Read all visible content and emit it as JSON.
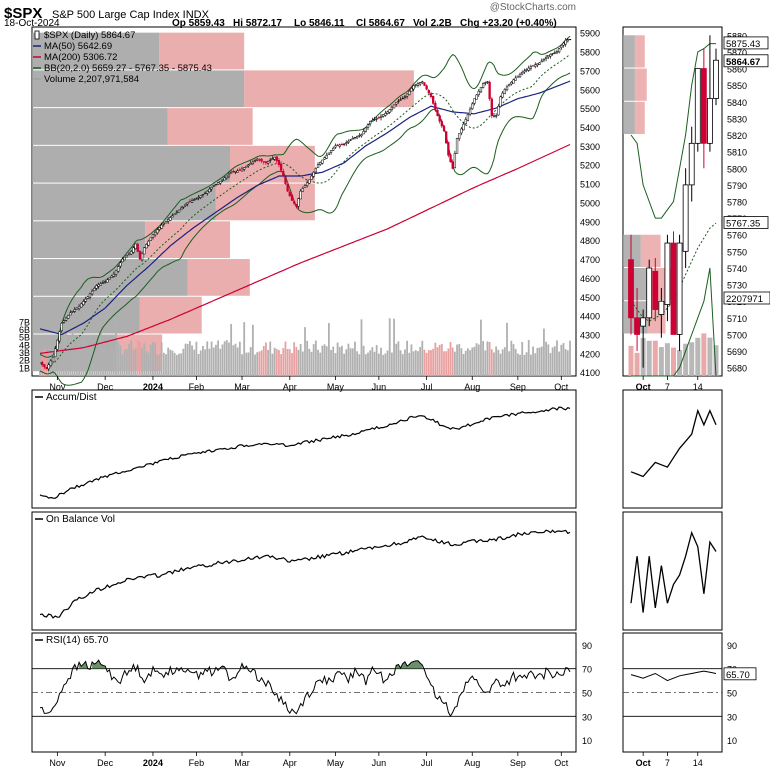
{
  "header": {
    "symbol": "$SPX",
    "name": "S&P 500 Large Cap Index",
    "exchange": "INDX",
    "date": "18-Oct-2024",
    "open_label": "Op",
    "open": "5859.43",
    "high_label": "Hi",
    "high": "5872.17",
    "low_label": "Lo",
    "low": "5846.11",
    "close_label": "Cl",
    "close": "5864.67",
    "vol_label": "Vol",
    "vol": "2.2B",
    "chg_label": "Chg",
    "chg": "+23.20 (+0.40%)",
    "watermark": "@StockCharts.com"
  },
  "colors": {
    "up": "#000000",
    "down": "#cc0033",
    "ma50": "#1a237e",
    "ma200": "#cc0033",
    "bb": "#1b5e20",
    "vbp_up": "#a0a0a0",
    "vbp_down": "#e8a0a0",
    "vol_up": "#b0b0b0",
    "vol_down": "#e8a0a0",
    "rsi_fill": "#3a6a3a"
  },
  "chart_data": [
    {
      "type": "line",
      "panel": "price",
      "legend": [
        {
          "text": "$SPX (Daily) 5864.67",
          "icon": "candle-icon"
        },
        {
          "text": "MA(50) 5642.69",
          "color": "#1a237e"
        },
        {
          "text": "MA(200) 5306.72",
          "color": "#cc0033"
        },
        {
          "text": "BB(20,2.0) 5659.27 - 5767.35 - 5875.43",
          "color": "#1b5e20"
        },
        {
          "text": "Volume 2,207,971,584",
          "color": "#a0a0a0"
        }
      ],
      "x_labels": [
        "Nov",
        "Dec",
        "2024",
        "Feb",
        "Mar",
        "Apr",
        "May",
        "Jun",
        "Jul",
        "Aug",
        "Sep",
        "Oct"
      ],
      "y_ticks": [
        4100,
        4200,
        4300,
        4400,
        4500,
        4600,
        4700,
        4800,
        4900,
        5000,
        5100,
        5200,
        5300,
        5400,
        5500,
        5600,
        5700,
        5800,
        5900
      ],
      "ylim": [
        4080,
        5930
      ],
      "volume_ticks": [
        "1B",
        "2B",
        "3B",
        "4B",
        "5B",
        "6B",
        "7B"
      ],
      "close_anchors": [
        [
          0,
          4150
        ],
        [
          3,
          4120
        ],
        [
          6,
          4180
        ],
        [
          10,
          4360
        ],
        [
          14,
          4415
        ],
        [
          18,
          4450
        ],
        [
          22,
          4500
        ],
        [
          26,
          4560
        ],
        [
          30,
          4580
        ],
        [
          34,
          4620
        ],
        [
          38,
          4700
        ],
        [
          42,
          4740
        ],
        [
          44,
          4780
        ],
        [
          46,
          4700
        ],
        [
          48,
          4760
        ],
        [
          52,
          4830
        ],
        [
          56,
          4880
        ],
        [
          60,
          4920
        ],
        [
          64,
          4960
        ],
        [
          68,
          5000
        ],
        [
          72,
          5020
        ],
        [
          76,
          5050
        ],
        [
          80,
          5090
        ],
        [
          84,
          5120
        ],
        [
          88,
          5160
        ],
        [
          92,
          5170
        ],
        [
          96,
          5200
        ],
        [
          100,
          5230
        ],
        [
          104,
          5210
        ],
        [
          108,
          5240
        ],
        [
          110,
          5200
        ],
        [
          112,
          5140
        ],
        [
          114,
          5060
        ],
        [
          116,
          5010
        ],
        [
          118,
          4980
        ],
        [
          120,
          5060
        ],
        [
          124,
          5120
        ],
        [
          128,
          5200
        ],
        [
          132,
          5250
        ],
        [
          136,
          5300
        ],
        [
          140,
          5310
        ],
        [
          144,
          5340
        ],
        [
          148,
          5360
        ],
        [
          152,
          5430
        ],
        [
          156,
          5450
        ],
        [
          160,
          5480
        ],
        [
          164,
          5530
        ],
        [
          168,
          5560
        ],
        [
          172,
          5620
        ],
        [
          176,
          5640
        ],
        [
          178,
          5600
        ],
        [
          180,
          5560
        ],
        [
          182,
          5490
        ],
        [
          184,
          5430
        ],
        [
          186,
          5380
        ],
        [
          188,
          5250
        ],
        [
          190,
          5180
        ],
        [
          192,
          5340
        ],
        [
          196,
          5440
        ],
        [
          200,
          5550
        ],
        [
          204,
          5630
        ],
        [
          206,
          5640
        ],
        [
          208,
          5460
        ],
        [
          210,
          5460
        ],
        [
          212,
          5560
        ],
        [
          214,
          5600
        ],
        [
          218,
          5650
        ],
        [
          222,
          5690
        ],
        [
          226,
          5720
        ],
        [
          230,
          5740
        ],
        [
          234,
          5780
        ],
        [
          238,
          5800
        ],
        [
          240,
          5830
        ],
        [
          242,
          5860
        ],
        [
          244,
          5865
        ]
      ],
      "ma50_anchors": [
        [
          0,
          4330
        ],
        [
          10,
          4300
        ],
        [
          20,
          4360
        ],
        [
          30,
          4440
        ],
        [
          40,
          4560
        ],
        [
          50,
          4660
        ],
        [
          60,
          4770
        ],
        [
          70,
          4860
        ],
        [
          80,
          4940
        ],
        [
          90,
          5020
        ],
        [
          100,
          5090
        ],
        [
          110,
          5140
        ],
        [
          120,
          5140
        ],
        [
          130,
          5160
        ],
        [
          140,
          5210
        ],
        [
          150,
          5300
        ],
        [
          160,
          5370
        ],
        [
          170,
          5450
        ],
        [
          180,
          5510
        ],
        [
          190,
          5480
        ],
        [
          200,
          5470
        ],
        [
          210,
          5500
        ],
        [
          220,
          5550
        ],
        [
          230,
          5580
        ],
        [
          244,
          5643
        ]
      ],
      "ma200_anchors": [
        [
          0,
          4200
        ],
        [
          20,
          4230
        ],
        [
          40,
          4290
        ],
        [
          60,
          4380
        ],
        [
          80,
          4480
        ],
        [
          100,
          4580
        ],
        [
          120,
          4680
        ],
        [
          140,
          4770
        ],
        [
          160,
          4860
        ],
        [
          180,
          4970
        ],
        [
          200,
          5080
        ],
        [
          220,
          5180
        ],
        [
          244,
          5307
        ]
      ],
      "vbp": [
        {
          "lo": 4100,
          "hi": 4300,
          "up": 0.3,
          "down": 0.16
        },
        {
          "lo": 4300,
          "hi": 4500,
          "up": 0.38,
          "down": 0.22
        },
        {
          "lo": 4500,
          "hi": 4700,
          "up": 0.55,
          "down": 0.22
        },
        {
          "lo": 4700,
          "hi": 4900,
          "up": 0.4,
          "down": 0.3
        },
        {
          "lo": 4900,
          "hi": 5100,
          "up": 0.65,
          "down": 0.35
        },
        {
          "lo": 5100,
          "hi": 5300,
          "up": 0.7,
          "down": 0.3
        },
        {
          "lo": 5300,
          "hi": 5500,
          "up": 0.48,
          "down": 0.3
        },
        {
          "lo": 5500,
          "hi": 5700,
          "up": 0.75,
          "down": 0.6
        },
        {
          "lo": 5700,
          "hi": 5900,
          "up": 0.45,
          "down": 0.3
        }
      ]
    },
    {
      "type": "line",
      "panel": "zoom",
      "x_labels": [
        "Oct",
        "7",
        "14"
      ],
      "y_ticks": [
        5680,
        5690,
        5700,
        5710,
        5720,
        5730,
        5740,
        5750,
        5760,
        5770,
        5780,
        5790,
        5800,
        5810,
        5820,
        5830,
        5840,
        5850,
        5860,
        5870,
        5880
      ],
      "ylim": [
        5675,
        5885
      ],
      "bb_upper_label": "5875.43",
      "close_label": "5864.67",
      "bb_mid_label": "5767.35",
      "volume_label": "2207971",
      "candles": [
        {
          "o": 5745,
          "h": 5760,
          "l": 5700,
          "c": 5710
        },
        {
          "o": 5710,
          "h": 5728,
          "l": 5690,
          "c": 5700
        },
        {
          "o": 5705,
          "h": 5715,
          "l": 5680,
          "c": 5710
        },
        {
          "o": 5710,
          "h": 5745,
          "l": 5705,
          "c": 5740
        },
        {
          "o": 5738,
          "h": 5746,
          "l": 5708,
          "c": 5715
        },
        {
          "o": 5712,
          "h": 5728,
          "l": 5698,
          "c": 5720
        },
        {
          "o": 5718,
          "h": 5760,
          "l": 5708,
          "c": 5755
        },
        {
          "o": 5755,
          "h": 5762,
          "l": 5700,
          "c": 5700
        },
        {
          "o": 5700,
          "h": 5760,
          "l": 5690,
          "c": 5755
        },
        {
          "o": 5750,
          "h": 5800,
          "l": 5740,
          "c": 5790
        },
        {
          "o": 5790,
          "h": 5825,
          "l": 5780,
          "c": 5815
        },
        {
          "o": 5815,
          "h": 5860,
          "l": 5810,
          "c": 5860
        },
        {
          "o": 5860,
          "h": 5872,
          "l": 5800,
          "c": 5815
        },
        {
          "o": 5815,
          "h": 5880,
          "l": 5810,
          "c": 5842
        },
        {
          "o": 5842,
          "h": 5872,
          "l": 5838,
          "c": 5865
        }
      ]
    },
    {
      "type": "line",
      "panel": "accum_dist",
      "legend": "Accum/Dist",
      "series_anchors": [
        [
          0,
          0.04
        ],
        [
          6,
          0.02
        ],
        [
          14,
          0.12
        ],
        [
          24,
          0.2
        ],
        [
          34,
          0.28
        ],
        [
          44,
          0.34
        ],
        [
          54,
          0.4
        ],
        [
          64,
          0.46
        ],
        [
          74,
          0.5
        ],
        [
          84,
          0.54
        ],
        [
          94,
          0.58
        ],
        [
          104,
          0.6
        ],
        [
          114,
          0.58
        ],
        [
          124,
          0.62
        ],
        [
          134,
          0.66
        ],
        [
          144,
          0.7
        ],
        [
          154,
          0.76
        ],
        [
          164,
          0.82
        ],
        [
          174,
          0.9
        ],
        [
          180,
          0.86
        ],
        [
          186,
          0.78
        ],
        [
          192,
          0.76
        ],
        [
          198,
          0.8
        ],
        [
          206,
          0.86
        ],
        [
          214,
          0.9
        ],
        [
          224,
          0.93
        ],
        [
          234,
          0.96
        ],
        [
          240,
          0.98
        ],
        [
          244,
          0.97
        ]
      ],
      "zoom_anchors": [
        [
          0,
          0.3
        ],
        [
          2,
          0.25
        ],
        [
          4,
          0.4
        ],
        [
          6,
          0.35
        ],
        [
          8,
          0.55
        ],
        [
          10,
          0.7
        ],
        [
          11,
          0.95
        ],
        [
          12,
          0.8
        ],
        [
          13,
          0.95
        ],
        [
          14,
          0.8
        ]
      ]
    },
    {
      "type": "line",
      "panel": "obv",
      "legend": "On Balance Vol",
      "series_anchors": [
        [
          0,
          0.08
        ],
        [
          8,
          0.05
        ],
        [
          16,
          0.22
        ],
        [
          26,
          0.34
        ],
        [
          36,
          0.42
        ],
        [
          46,
          0.48
        ],
        [
          56,
          0.5
        ],
        [
          66,
          0.56
        ],
        [
          76,
          0.6
        ],
        [
          86,
          0.64
        ],
        [
          96,
          0.68
        ],
        [
          106,
          0.7
        ],
        [
          116,
          0.64
        ],
        [
          126,
          0.68
        ],
        [
          136,
          0.72
        ],
        [
          146,
          0.76
        ],
        [
          156,
          0.8
        ],
        [
          166,
          0.84
        ],
        [
          176,
          0.9
        ],
        [
          184,
          0.85
        ],
        [
          192,
          0.82
        ],
        [
          200,
          0.86
        ],
        [
          210,
          0.88
        ],
        [
          220,
          0.93
        ],
        [
          230,
          0.95
        ],
        [
          238,
          0.97
        ],
        [
          244,
          0.96
        ]
      ],
      "zoom_anchors": [
        [
          0,
          0.2
        ],
        [
          1,
          0.7
        ],
        [
          2,
          0.1
        ],
        [
          3,
          0.7
        ],
        [
          4,
          0.15
        ],
        [
          5,
          0.6
        ],
        [
          6,
          0.2
        ],
        [
          7,
          0.4
        ],
        [
          8,
          0.5
        ],
        [
          9,
          0.7
        ],
        [
          10,
          0.95
        ],
        [
          11,
          0.8
        ],
        [
          12,
          0.3
        ],
        [
          13,
          0.85
        ],
        [
          14,
          0.75
        ]
      ]
    },
    {
      "type": "line",
      "panel": "rsi",
      "legend": "RSI(14) 65.70",
      "y_ticks": [
        10,
        30,
        50,
        70,
        90
      ],
      "ylim": [
        0,
        100
      ],
      "value_label": "65.70",
      "series_anchors": [
        [
          0,
          38
        ],
        [
          4,
          30
        ],
        [
          8,
          45
        ],
        [
          12,
          60
        ],
        [
          16,
          70
        ],
        [
          20,
          74
        ],
        [
          24,
          72
        ],
        [
          28,
          76
        ],
        [
          32,
          66
        ],
        [
          36,
          60
        ],
        [
          40,
          66
        ],
        [
          44,
          72
        ],
        [
          48,
          62
        ],
        [
          52,
          68
        ],
        [
          56,
          65
        ],
        [
          60,
          70
        ],
        [
          64,
          66
        ],
        [
          68,
          72
        ],
        [
          72,
          64
        ],
        [
          76,
          70
        ],
        [
          80,
          66
        ],
        [
          84,
          72
        ],
        [
          88,
          60
        ],
        [
          92,
          70
        ],
        [
          96,
          72
        ],
        [
          100,
          64
        ],
        [
          104,
          58
        ],
        [
          108,
          50
        ],
        [
          112,
          42
        ],
        [
          116,
          34
        ],
        [
          118,
          32
        ],
        [
          122,
          46
        ],
        [
          126,
          54
        ],
        [
          130,
          62
        ],
        [
          134,
          58
        ],
        [
          138,
          66
        ],
        [
          142,
          62
        ],
        [
          146,
          68
        ],
        [
          150,
          60
        ],
        [
          154,
          70
        ],
        [
          158,
          62
        ],
        [
          162,
          68
        ],
        [
          166,
          72
        ],
        [
          170,
          74
        ],
        [
          174,
          78
        ],
        [
          176,
          76
        ],
        [
          178,
          60
        ],
        [
          182,
          48
        ],
        [
          186,
          40
        ],
        [
          190,
          32
        ],
        [
          194,
          52
        ],
        [
          198,
          62
        ],
        [
          202,
          58
        ],
        [
          206,
          48
        ],
        [
          210,
          60
        ],
        [
          214,
          56
        ],
        [
          218,
          64
        ],
        [
          222,
          60
        ],
        [
          226,
          66
        ],
        [
          230,
          62
        ],
        [
          234,
          68
        ],
        [
          238,
          64
        ],
        [
          242,
          68
        ],
        [
          244,
          66
        ]
      ],
      "zoom_anchors": [
        [
          0,
          65
        ],
        [
          2,
          62
        ],
        [
          4,
          66
        ],
        [
          6,
          60
        ],
        [
          8,
          64
        ],
        [
          10,
          66
        ],
        [
          12,
          68
        ],
        [
          14,
          66
        ]
      ]
    }
  ]
}
